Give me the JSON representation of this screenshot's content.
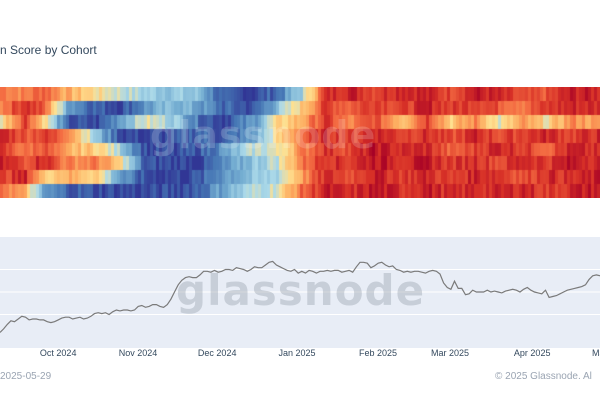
{
  "title": "n Score by Cohort",
  "watermark": "glassnode",
  "footer": {
    "date": "2025-05-29",
    "copyright": "© 2025 Glassnode. Al"
  },
  "chart_data": [
    {
      "type": "heatmap",
      "title": "n Score by Cohort",
      "x_range": [
        "2024-09-01",
        "2025-05-29"
      ],
      "rows": 8,
      "colorscale": [
        "#313695",
        "#4575b4",
        "#74add1",
        "#abd9e9",
        "#fee090",
        "#fdae61",
        "#f46d43",
        "#d73027",
        "#a50026"
      ],
      "value_range": [
        0,
        1
      ],
      "row_segments": [
        [
          [
            0,
            0.75
          ],
          [
            0.04,
            0.7
          ],
          [
            0.07,
            0.8
          ],
          [
            0.11,
            0.62
          ],
          [
            0.16,
            0.5
          ],
          [
            0.2,
            0.42
          ],
          [
            0.24,
            0.35
          ],
          [
            0.29,
            0.33
          ],
          [
            0.33,
            0.3
          ],
          [
            0.37,
            0.05
          ],
          [
            0.42,
            0.03
          ],
          [
            0.46,
            0.12
          ],
          [
            0.5,
            0.35
          ],
          [
            0.54,
            0.86
          ],
          [
            0.58,
            0.93
          ],
          [
            0.62,
            0.85
          ],
          [
            0.67,
            0.93
          ],
          [
            0.71,
            0.9
          ],
          [
            0.75,
            0.83
          ],
          [
            0.79,
            0.93
          ],
          [
            0.83,
            0.88
          ],
          [
            0.87,
            0.78
          ],
          [
            0.91,
            0.8
          ],
          [
            0.95,
            0.92
          ],
          [
            1.0,
            0.9
          ]
        ],
        [
          [
            0,
            0.72
          ],
          [
            0.04,
            0.9
          ],
          [
            0.07,
            0.78
          ],
          [
            0.11,
            0.25
          ],
          [
            0.16,
            0.08
          ],
          [
            0.2,
            0.05
          ],
          [
            0.24,
            0.2
          ],
          [
            0.29,
            0.3
          ],
          [
            0.33,
            0.22
          ],
          [
            0.37,
            0.1
          ],
          [
            0.42,
            0.05
          ],
          [
            0.46,
            0.3
          ],
          [
            0.5,
            0.55
          ],
          [
            0.54,
            0.85
          ],
          [
            0.58,
            0.78
          ],
          [
            0.62,
            0.88
          ],
          [
            0.67,
            0.82
          ],
          [
            0.71,
            0.92
          ],
          [
            0.75,
            0.84
          ],
          [
            0.79,
            0.88
          ],
          [
            0.83,
            0.8
          ],
          [
            0.87,
            0.75
          ],
          [
            0.91,
            0.85
          ],
          [
            0.95,
            0.9
          ],
          [
            1.0,
            0.88
          ]
        ],
        [
          [
            0,
            0.5
          ],
          [
            0.04,
            0.86
          ],
          [
            0.07,
            0.55
          ],
          [
            0.11,
            0.06
          ],
          [
            0.16,
            0.03
          ],
          [
            0.2,
            0.25
          ],
          [
            0.24,
            0.45
          ],
          [
            0.29,
            0.35
          ],
          [
            0.33,
            0.12
          ],
          [
            0.37,
            0.04
          ],
          [
            0.42,
            0.2
          ],
          [
            0.46,
            0.5
          ],
          [
            0.5,
            0.62
          ],
          [
            0.54,
            0.86
          ],
          [
            0.58,
            0.68
          ],
          [
            0.62,
            0.82
          ],
          [
            0.67,
            0.6
          ],
          [
            0.71,
            0.86
          ],
          [
            0.75,
            0.55
          ],
          [
            0.79,
            0.7
          ],
          [
            0.83,
            0.45
          ],
          [
            0.87,
            0.65
          ],
          [
            0.91,
            0.5
          ],
          [
            0.95,
            0.7
          ],
          [
            1.0,
            0.62
          ]
        ],
        [
          [
            0,
            0.92
          ],
          [
            0.04,
            0.8
          ],
          [
            0.07,
            0.85
          ],
          [
            0.11,
            0.75
          ],
          [
            0.16,
            0.3
          ],
          [
            0.2,
            0.05
          ],
          [
            0.24,
            0.02
          ],
          [
            0.29,
            0.05
          ],
          [
            0.33,
            0.12
          ],
          [
            0.37,
            0.06
          ],
          [
            0.42,
            0.22
          ],
          [
            0.46,
            0.5
          ],
          [
            0.5,
            0.75
          ],
          [
            0.54,
            0.9
          ],
          [
            0.58,
            0.83
          ],
          [
            0.62,
            0.92
          ],
          [
            0.67,
            0.85
          ],
          [
            0.71,
            0.88
          ],
          [
            0.75,
            0.8
          ],
          [
            0.79,
            0.9
          ],
          [
            0.83,
            0.82
          ],
          [
            0.87,
            0.86
          ],
          [
            0.91,
            0.9
          ],
          [
            0.95,
            0.84
          ],
          [
            1.0,
            0.9
          ]
        ],
        [
          [
            0,
            0.85
          ],
          [
            0.04,
            0.72
          ],
          [
            0.07,
            0.82
          ],
          [
            0.11,
            0.6
          ],
          [
            0.16,
            0.55
          ],
          [
            0.2,
            0.35
          ],
          [
            0.24,
            0.05
          ],
          [
            0.29,
            0.03
          ],
          [
            0.33,
            0.08
          ],
          [
            0.37,
            0.2
          ],
          [
            0.42,
            0.4
          ],
          [
            0.46,
            0.45
          ],
          [
            0.5,
            0.7
          ],
          [
            0.54,
            0.88
          ],
          [
            0.58,
            0.82
          ],
          [
            0.62,
            0.94
          ],
          [
            0.67,
            0.88
          ],
          [
            0.71,
            0.9
          ],
          [
            0.75,
            0.75
          ],
          [
            0.79,
            0.84
          ],
          [
            0.83,
            0.92
          ],
          [
            0.87,
            0.86
          ],
          [
            0.91,
            0.78
          ],
          [
            0.95,
            0.9
          ],
          [
            1.0,
            0.86
          ]
        ],
        [
          [
            0,
            0.9
          ],
          [
            0.04,
            0.82
          ],
          [
            0.07,
            0.92
          ],
          [
            0.11,
            0.7
          ],
          [
            0.16,
            0.72
          ],
          [
            0.2,
            0.5
          ],
          [
            0.24,
            0.05
          ],
          [
            0.29,
            0.04
          ],
          [
            0.33,
            0.02
          ],
          [
            0.37,
            0.15
          ],
          [
            0.42,
            0.32
          ],
          [
            0.46,
            0.42
          ],
          [
            0.5,
            0.72
          ],
          [
            0.54,
            0.9
          ],
          [
            0.58,
            0.86
          ],
          [
            0.62,
            0.95
          ],
          [
            0.67,
            0.9
          ],
          [
            0.71,
            0.93
          ],
          [
            0.75,
            0.85
          ],
          [
            0.79,
            0.9
          ],
          [
            0.83,
            0.82
          ],
          [
            0.87,
            0.92
          ],
          [
            0.91,
            0.86
          ],
          [
            0.95,
            0.94
          ],
          [
            1.0,
            0.9
          ]
        ],
        [
          [
            0,
            0.82
          ],
          [
            0.04,
            0.9
          ],
          [
            0.07,
            0.55
          ],
          [
            0.11,
            0.62
          ],
          [
            0.16,
            0.55
          ],
          [
            0.2,
            0.2
          ],
          [
            0.24,
            0.04
          ],
          [
            0.29,
            0.03
          ],
          [
            0.33,
            0.06
          ],
          [
            0.37,
            0.22
          ],
          [
            0.42,
            0.3
          ],
          [
            0.46,
            0.38
          ],
          [
            0.5,
            0.65
          ],
          [
            0.54,
            0.88
          ],
          [
            0.58,
            0.82
          ],
          [
            0.62,
            0.92
          ],
          [
            0.67,
            0.86
          ],
          [
            0.71,
            0.9
          ],
          [
            0.75,
            0.82
          ],
          [
            0.79,
            0.92
          ],
          [
            0.83,
            0.88
          ],
          [
            0.87,
            0.8
          ],
          [
            0.91,
            0.9
          ],
          [
            0.95,
            0.86
          ],
          [
            1.0,
            0.92
          ]
        ],
        [
          [
            0,
            0.78
          ],
          [
            0.04,
            0.6
          ],
          [
            0.07,
            0.2
          ],
          [
            0.11,
            0.1
          ],
          [
            0.16,
            0.05
          ],
          [
            0.2,
            0.04
          ],
          [
            0.24,
            0.03
          ],
          [
            0.29,
            0.05
          ],
          [
            0.33,
            0.1
          ],
          [
            0.37,
            0.25
          ],
          [
            0.42,
            0.38
          ],
          [
            0.46,
            0.45
          ],
          [
            0.5,
            0.75
          ],
          [
            0.54,
            0.92
          ],
          [
            0.58,
            0.86
          ],
          [
            0.62,
            0.94
          ],
          [
            0.67,
            0.88
          ],
          [
            0.71,
            0.93
          ],
          [
            0.75,
            0.86
          ],
          [
            0.79,
            0.9
          ],
          [
            0.83,
            0.88
          ],
          [
            0.87,
            0.92
          ],
          [
            0.91,
            0.84
          ],
          [
            0.95,
            0.9
          ],
          [
            1.0,
            0.94
          ]
        ]
      ]
    },
    {
      "type": "line",
      "x_range": [
        "2024-09-14",
        "2025-05-29"
      ],
      "series": [
        {
          "color": "#7a7a7a",
          "values": [
            0.05,
            0.09,
            0.14,
            0.18,
            0.17,
            0.2,
            0.23,
            0.22,
            0.19,
            0.2,
            0.2,
            0.19,
            0.19,
            0.17,
            0.16,
            0.17,
            0.19,
            0.21,
            0.22,
            0.22,
            0.2,
            0.21,
            0.22,
            0.2,
            0.21,
            0.23,
            0.26,
            0.27,
            0.26,
            0.27,
            0.25,
            0.28,
            0.3,
            0.29,
            0.3,
            0.3,
            0.29,
            0.3,
            0.34,
            0.35,
            0.33,
            0.34,
            0.36,
            0.36,
            0.34,
            0.33,
            0.36,
            0.42,
            0.5,
            0.58,
            0.63,
            0.66,
            0.67,
            0.66,
            0.66,
            0.69,
            0.73,
            0.73,
            0.72,
            0.74,
            0.72,
            0.73,
            0.75,
            0.75,
            0.74,
            0.77,
            0.76,
            0.75,
            0.73,
            0.75,
            0.78,
            0.77,
            0.77,
            0.8,
            0.83,
            0.84,
            0.8,
            0.78,
            0.76,
            0.74,
            0.73,
            0.75,
            0.71,
            0.73,
            0.71,
            0.74,
            0.73,
            0.71,
            0.73,
            0.73,
            0.74,
            0.73,
            0.74,
            0.74,
            0.72,
            0.73,
            0.74,
            0.72,
            0.78,
            0.83,
            0.83,
            0.82,
            0.77,
            0.79,
            0.82,
            0.83,
            0.8,
            0.78,
            0.79,
            0.75,
            0.74,
            0.72,
            0.73,
            0.72,
            0.73,
            0.73,
            0.72,
            0.71,
            0.73,
            0.74,
            0.73,
            0.7,
            0.6,
            0.55,
            0.53,
            0.62,
            0.54,
            0.54,
            0.47,
            0.48,
            0.52,
            0.5,
            0.5,
            0.5,
            0.52,
            0.5,
            0.51,
            0.5,
            0.49,
            0.51,
            0.52,
            0.53,
            0.52,
            0.5,
            0.53,
            0.55,
            0.52,
            0.5,
            0.49,
            0.48,
            0.52,
            0.44,
            0.45,
            0.46,
            0.48,
            0.5,
            0.52,
            0.53,
            0.54,
            0.55,
            0.56,
            0.58,
            0.64,
            0.68,
            0.69,
            0.68
          ]
        }
      ]
    }
  ],
  "x_axis": {
    "ticks": [
      {
        "label": "Oct 2024",
        "pos": 0.097
      },
      {
        "label": "Nov 2024",
        "pos": 0.23
      },
      {
        "label": "Dec 2024",
        "pos": 0.362
      },
      {
        "label": "Jan 2025",
        "pos": 0.495
      },
      {
        "label": "Feb 2025",
        "pos": 0.63
      },
      {
        "label": "Mar 2025",
        "pos": 0.75
      },
      {
        "label": "Apr 2025",
        "pos": 0.887
      },
      {
        "label": "Ma",
        "pos": 0.995
      }
    ]
  }
}
